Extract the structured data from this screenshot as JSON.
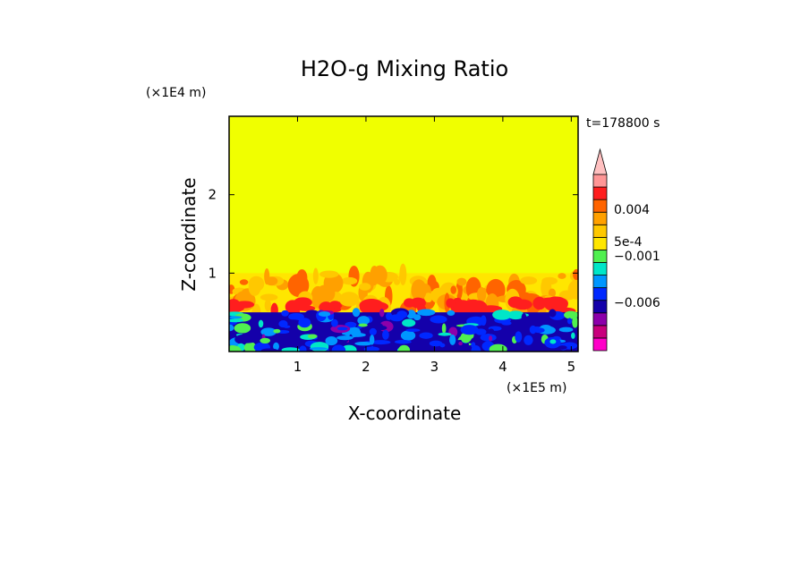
{
  "chart_data": {
    "type": "heatmap",
    "title": "H2O-g Mixing Ratio",
    "xlabel": "X-coordinate",
    "ylabel": "Z-coordinate",
    "x_scale_label": "(×1E5 m)",
    "y_scale_label": "(×1E4 m)",
    "time_label": "t=178800 s",
    "xlim": [
      0,
      5.1
    ],
    "ylim": [
      0,
      3.0
    ],
    "x_ticks": [
      "1",
      "2",
      "3",
      "4",
      "5"
    ],
    "y_ticks": [
      "1",
      "2"
    ],
    "grid": false,
    "colorbar": {
      "position": "right",
      "extend": "max",
      "colors": [
        "#ff00c8",
        "#c8007d",
        "#8c00aa",
        "#1400aa",
        "#0028ff",
        "#0096ff",
        "#00e6c8",
        "#50f050",
        "#ffe600",
        "#ffc800",
        "#ffa000",
        "#ff6400",
        "#ff1e1e",
        "#ff9696",
        "#ffc0c0"
      ],
      "labels": [
        "0.004",
        "5e-4",
        "−0.001",
        "−0.006"
      ]
    },
    "regions": [
      {
        "z_min": 0.0,
        "z_max": 0.5,
        "dominant": "strongly negative (blue / purple)"
      },
      {
        "z_min": 0.4,
        "z_max": 1.0,
        "dominant": "positive (orange / red)"
      },
      {
        "z_min": 1.0,
        "z_max": 3.0,
        "dominant": "near zero (yellow)"
      }
    ]
  }
}
